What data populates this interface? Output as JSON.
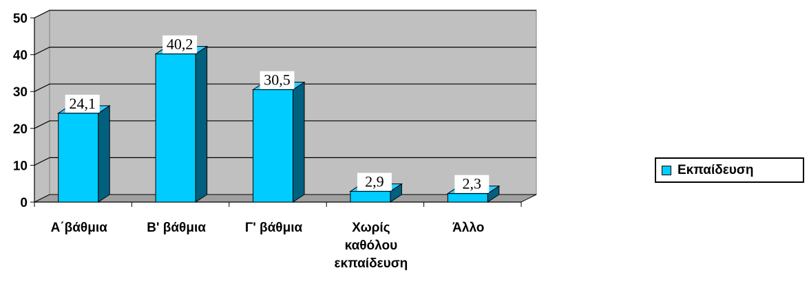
{
  "chart_data": {
    "type": "bar",
    "categories": [
      [
        "Α΄βάθμια"
      ],
      [
        "Β' βάθμια"
      ],
      [
        "Γ' βάθμια"
      ],
      [
        "Χωρίς",
        "καθόλου",
        "εκπαίδευση"
      ],
      [
        "Άλλο"
      ]
    ],
    "series": [
      {
        "name": "Εκπαίδευση",
        "values": [
          24.1,
          40.2,
          30.5,
          2.9,
          2.3
        ]
      }
    ],
    "data_labels": [
      "24,1",
      "40,2",
      "30,5",
      "2,9",
      "2,3"
    ],
    "yticks": [
      "0",
      "10",
      "20",
      "30",
      "40",
      "50"
    ],
    "ylim": [
      0,
      50
    ],
    "grid": true,
    "three_d": true,
    "legend_position": "right",
    "colors": {
      "bar_front": "#00CCFF",
      "bar_side": "#006080",
      "bar_top": "#33CCFF",
      "plot_back": "#C0C0C0",
      "floor": "#A0A0A0"
    }
  }
}
